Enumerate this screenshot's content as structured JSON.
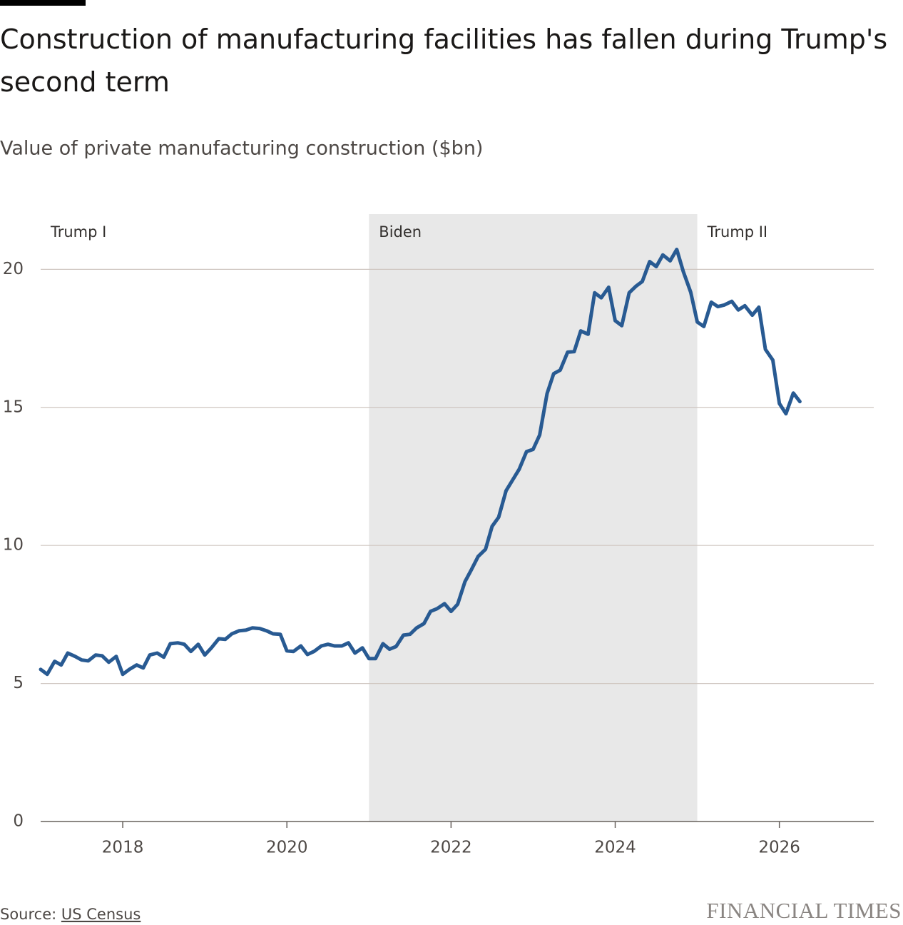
{
  "chart_data": {
    "type": "line",
    "title": "Construction of manufacturing facilities has fallen during Trump's second term",
    "subtitle": "Value of private manufacturing construction ($bn)",
    "source_label": "Source:",
    "source_link": "US Census",
    "publisher": "FINANCIAL TIMES",
    "periods": [
      {
        "label": "Trump I",
        "start": 2017,
        "end": 2021,
        "shaded": false
      },
      {
        "label": "Biden",
        "start": 2021,
        "end": 2025,
        "shaded": true
      },
      {
        "label": "Trump II",
        "start": 2025,
        "shaded": false
      }
    ],
    "xlim": [
      2017,
      2027.15
    ],
    "ylim": [
      0,
      22
    ],
    "xticks": [
      2018,
      2020,
      2022,
      2024,
      2026
    ],
    "yticks": [
      0,
      5,
      10,
      15,
      20
    ],
    "grid": true,
    "x": [
      2017.0,
      2017.08,
      2017.17,
      2017.25,
      2017.33,
      2017.42,
      2017.5,
      2017.58,
      2017.67,
      2017.75,
      2017.83,
      2017.92,
      2018.0,
      2018.08,
      2018.17,
      2018.25,
      2018.33,
      2018.42,
      2018.5,
      2018.58,
      2018.67,
      2018.75,
      2018.83,
      2018.92,
      2019.0,
      2019.08,
      2019.17,
      2019.25,
      2019.33,
      2019.42,
      2019.5,
      2019.58,
      2019.67,
      2019.75,
      2019.83,
      2019.92,
      2020.0,
      2020.08,
      2020.17,
      2020.25,
      2020.33,
      2020.42,
      2020.5,
      2020.58,
      2020.67,
      2020.75,
      2020.83,
      2020.92,
      2021.0,
      2021.08,
      2021.17,
      2021.25,
      2021.33,
      2021.42,
      2021.5,
      2021.58,
      2021.67,
      2021.75,
      2021.83,
      2021.92,
      2022.0,
      2022.08,
      2022.17,
      2022.25,
      2022.33,
      2022.42,
      2022.5,
      2022.58,
      2022.67,
      2022.75,
      2022.83,
      2022.92,
      2023.0,
      2023.08,
      2023.17,
      2023.25,
      2023.33,
      2023.42,
      2023.5,
      2023.58,
      2023.67,
      2023.75,
      2023.83,
      2023.92,
      2024.0,
      2024.08,
      2024.17,
      2024.25,
      2024.33,
      2024.42,
      2024.5,
      2024.58,
      2024.67,
      2024.75,
      2024.83,
      2024.92,
      2025.0,
      2025.08,
      2025.17,
      2025.25,
      2025.33,
      2025.42,
      2025.5,
      2025.58,
      2025.67,
      2025.75,
      2025.83,
      2025.92,
      2026.0,
      2026.08,
      2026.17,
      2026.25
    ],
    "series": [
      {
        "name": "Value of private manufacturing construction",
        "color": "#285a92",
        "values": [
          5.51,
          5.33,
          5.8,
          5.67,
          6.1,
          5.98,
          5.85,
          5.82,
          6.03,
          6.0,
          5.77,
          5.98,
          5.33,
          5.51,
          5.67,
          5.56,
          6.03,
          6.1,
          5.95,
          6.44,
          6.47,
          6.42,
          6.16,
          6.42,
          6.03,
          6.29,
          6.62,
          6.6,
          6.8,
          6.91,
          6.93,
          7.01,
          6.99,
          6.91,
          6.8,
          6.78,
          6.18,
          6.16,
          6.36,
          6.05,
          6.16,
          6.36,
          6.42,
          6.36,
          6.36,
          6.47,
          6.1,
          6.29,
          5.9,
          5.9,
          6.44,
          6.24,
          6.34,
          6.75,
          6.78,
          7.01,
          7.17,
          7.61,
          7.71,
          7.89,
          7.61,
          7.87,
          8.69,
          9.13,
          9.6,
          9.86,
          10.69,
          11.02,
          11.98,
          12.37,
          12.76,
          13.4,
          13.48,
          14.0,
          15.5,
          16.22,
          16.35,
          17.0,
          17.02,
          17.77,
          17.65,
          19.15,
          18.97,
          19.35,
          18.14,
          17.96,
          19.15,
          19.38,
          19.56,
          20.28,
          20.1,
          20.52,
          20.31,
          20.72,
          19.92,
          19.17,
          18.09,
          17.93,
          18.81,
          18.65,
          18.71,
          18.84,
          18.53,
          18.68,
          18.34,
          18.63,
          17.1,
          16.71,
          15.14,
          14.77,
          15.52,
          15.21
        ]
      }
    ]
  }
}
